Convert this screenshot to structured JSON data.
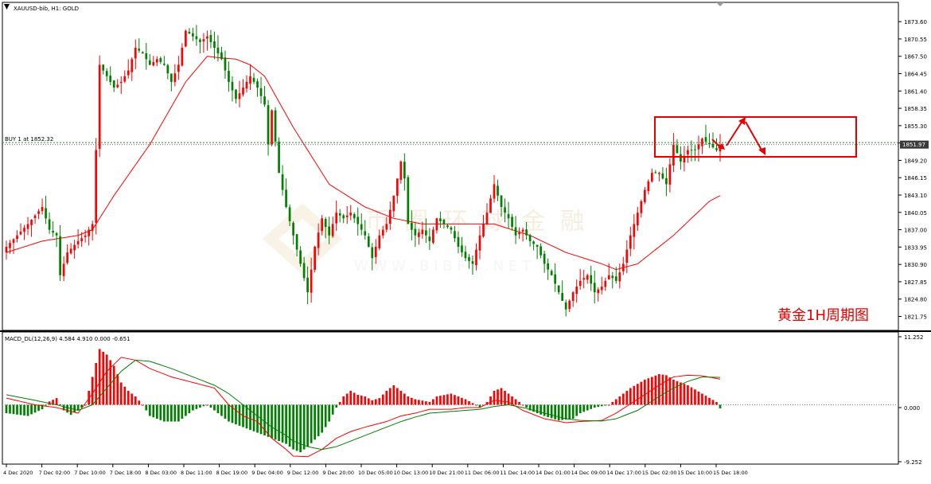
{
  "header": {
    "symbol_label": "XAUUSD-bib, H1:  GOLD"
  },
  "order_line": {
    "label": "BUY 1 at 1852.32",
    "price": 1852.32
  },
  "current_price_badge": "1851.97",
  "annotation": {
    "text": "黄金1H周期图"
  },
  "watermark": {
    "text_cn": "  币  圈  环  球  金  融",
    "text_url": "W W W . B I B F X . N E T"
  },
  "macd": {
    "label": "MACD_DL(12,26,9) 4.584 4.910 0.000 -0.651",
    "axis_labels": [
      "11.252",
      "0.000",
      "-9.252"
    ]
  },
  "colors": {
    "bull": "#ff0000",
    "bear": "#008000",
    "ma": "#ff0000",
    "signal": "#008000",
    "grid_dash": "#2a8f2a",
    "annotation": "#ff0000"
  },
  "chart_data": {
    "type": "candlestick",
    "price_axis": {
      "ylim": [
        1820.0,
        1876.0
      ],
      "ticks": [
        "1873.60",
        "1870.55",
        "1867.50",
        "1864.45",
        "1861.40",
        "1858.35",
        "1855.30",
        "1852.25",
        "1849.20",
        "1846.15",
        "1843.10",
        "1840.05",
        "1837.00",
        "1833.95",
        "1830.90",
        "1827.85",
        "1824.80",
        "1821.75"
      ]
    },
    "macd_axis": {
      "ylim": [
        -10.2,
        12.2
      ]
    },
    "x_labels": [
      "4 Dec 2020",
      "7 Dec 02:00",
      "7 Dec 10:00",
      "7 Dec 18:00",
      "8 Dec 03:00",
      "8 Dec 11:00",
      "8 Dec 19:00",
      "9 Dec 04:00",
      "9 Dec 12:00",
      "9 Dec 20:00",
      "10 Dec 05:00",
      "10 Dec 13:00",
      "10 Dec 21:00",
      "11 Dec 06:00",
      "11 Dec 14:00",
      "14 Dec 01:00",
      "14 Dec 09:00",
      "14 Dec 17:00",
      "15 Dec 02:00",
      "15 Dec 10:00",
      "15 Dec 18:00"
    ],
    "price_anchors": [
      [
        0,
        1834
      ],
      [
        6,
        1838
      ],
      [
        10,
        1841
      ],
      [
        12,
        1837
      ],
      [
        14,
        1836
      ],
      [
        15,
        1829
      ],
      [
        17,
        1833
      ],
      [
        20,
        1835
      ],
      [
        22,
        1836
      ],
      [
        24,
        1838
      ],
      [
        25,
        1851
      ],
      [
        26,
        1866
      ],
      [
        28,
        1864
      ],
      [
        30,
        1862
      ],
      [
        32,
        1863
      ],
      [
        34,
        1865
      ],
      [
        36,
        1869
      ],
      [
        38,
        1868
      ],
      [
        40,
        1866
      ],
      [
        42,
        1867
      ],
      [
        44,
        1866
      ],
      [
        46,
        1863
      ],
      [
        48,
        1866
      ],
      [
        50,
        1872
      ],
      [
        52,
        1871
      ],
      [
        54,
        1870
      ],
      [
        56,
        1871
      ],
      [
        58,
        1869
      ],
      [
        60,
        1867
      ],
      [
        62,
        1863
      ],
      [
        64,
        1860
      ],
      [
        66,
        1862
      ],
      [
        68,
        1864
      ],
      [
        70,
        1862
      ],
      [
        72,
        1859
      ],
      [
        73,
        1852
      ],
      [
        74,
        1858
      ],
      [
        76,
        1847
      ],
      [
        78,
        1841
      ],
      [
        80,
        1836
      ],
      [
        82,
        1831
      ],
      [
        84,
        1826
      ],
      [
        86,
        1834
      ],
      [
        88,
        1839
      ],
      [
        90,
        1836
      ],
      [
        92,
        1840
      ],
      [
        94,
        1839
      ],
      [
        96,
        1840
      ],
      [
        98,
        1838
      ],
      [
        100,
        1836
      ],
      [
        102,
        1832
      ],
      [
        104,
        1836
      ],
      [
        106,
        1838
      ],
      [
        108,
        1843
      ],
      [
        110,
        1849
      ],
      [
        111,
        1846
      ],
      [
        112,
        1838
      ],
      [
        114,
        1836
      ],
      [
        116,
        1837
      ],
      [
        118,
        1835
      ],
      [
        120,
        1839
      ],
      [
        122,
        1838
      ],
      [
        124,
        1837
      ],
      [
        126,
        1834
      ],
      [
        128,
        1832
      ],
      [
        130,
        1831
      ],
      [
        132,
        1836
      ],
      [
        134,
        1840
      ],
      [
        136,
        1845
      ],
      [
        138,
        1841
      ],
      [
        140,
        1839
      ],
      [
        142,
        1836
      ],
      [
        144,
        1837
      ],
      [
        146,
        1835
      ],
      [
        148,
        1834
      ],
      [
        150,
        1831
      ],
      [
        152,
        1829
      ],
      [
        154,
        1826
      ],
      [
        156,
        1823
      ],
      [
        158,
        1826
      ],
      [
        160,
        1828
      ],
      [
        162,
        1829
      ],
      [
        164,
        1826
      ],
      [
        166,
        1827
      ],
      [
        168,
        1829
      ],
      [
        170,
        1828
      ],
      [
        172,
        1831
      ],
      [
        174,
        1836
      ],
      [
        176,
        1840
      ],
      [
        178,
        1844
      ],
      [
        180,
        1847
      ],
      [
        182,
        1847
      ],
      [
        184,
        1845
      ],
      [
        186,
        1852
      ],
      [
        188,
        1849
      ],
      [
        190,
        1851
      ],
      [
        192,
        1851
      ],
      [
        194,
        1853
      ],
      [
        196,
        1852
      ],
      [
        198,
        1851
      ],
      [
        199,
        1851.97
      ]
    ],
    "moving_average_anchors": [
      [
        0,
        1833
      ],
      [
        10,
        1835
      ],
      [
        20,
        1836
      ],
      [
        24,
        1837
      ],
      [
        30,
        1843
      ],
      [
        40,
        1852
      ],
      [
        50,
        1863
      ],
      [
        56,
        1867.5
      ],
      [
        60,
        1867.2
      ],
      [
        64,
        1867
      ],
      [
        68,
        1866
      ],
      [
        72,
        1864
      ],
      [
        80,
        1855
      ],
      [
        90,
        1845
      ],
      [
        100,
        1841
      ],
      [
        108,
        1839
      ],
      [
        116,
        1838
      ],
      [
        126,
        1838
      ],
      [
        136,
        1838
      ],
      [
        146,
        1836
      ],
      [
        156,
        1833
      ],
      [
        166,
        1831
      ],
      [
        170,
        1830
      ],
      [
        176,
        1831
      ],
      [
        186,
        1836
      ],
      [
        196,
        1842
      ],
      [
        199,
        1843
      ]
    ],
    "macd_histogram_anchors": [
      [
        0,
        -1.5
      ],
      [
        6,
        -2
      ],
      [
        10,
        -0.8
      ],
      [
        12,
        0.6
      ],
      [
        14,
        1.2
      ],
      [
        16,
        -1
      ],
      [
        18,
        -1.8
      ],
      [
        20,
        -1
      ],
      [
        22,
        0
      ],
      [
        24,
        5
      ],
      [
        26,
        10
      ],
      [
        28,
        9
      ],
      [
        30,
        7
      ],
      [
        32,
        4
      ],
      [
        34,
        2.5
      ],
      [
        36,
        1.5
      ],
      [
        38,
        0
      ],
      [
        40,
        -2
      ],
      [
        44,
        -3
      ],
      [
        48,
        -3
      ],
      [
        52,
        -1
      ],
      [
        56,
        0
      ],
      [
        58,
        -1
      ],
      [
        62,
        -3
      ],
      [
        66,
        -4
      ],
      [
        70,
        -5
      ],
      [
        74,
        -6
      ],
      [
        78,
        -7
      ],
      [
        80,
        -8
      ],
      [
        82,
        -8.5
      ],
      [
        84,
        -7.5
      ],
      [
        88,
        -5
      ],
      [
        90,
        -3
      ],
      [
        92,
        -0.5
      ],
      [
        94,
        1.5
      ],
      [
        96,
        2.5
      ],
      [
        98,
        1.8
      ],
      [
        100,
        1.5
      ],
      [
        102,
        0.8
      ],
      [
        104,
        1.2
      ],
      [
        106,
        2.5
      ],
      [
        108,
        3.5
      ],
      [
        110,
        2.5
      ],
      [
        112,
        1.5
      ],
      [
        114,
        1
      ],
      [
        118,
        0.5
      ],
      [
        120,
        1.5
      ],
      [
        124,
        2
      ],
      [
        128,
        1
      ],
      [
        130,
        0.3
      ],
      [
        132,
        -0.5
      ],
      [
        134,
        0.5
      ],
      [
        136,
        2.5
      ],
      [
        138,
        3
      ],
      [
        140,
        2
      ],
      [
        142,
        1
      ],
      [
        144,
        0
      ],
      [
        146,
        -1
      ],
      [
        150,
        -2
      ],
      [
        154,
        -2.8
      ],
      [
        158,
        -2.5
      ],
      [
        160,
        -1.5
      ],
      [
        164,
        -0.5
      ],
      [
        168,
        0
      ],
      [
        170,
        1
      ],
      [
        172,
        2
      ],
      [
        174,
        3
      ],
      [
        178,
        4.5
      ],
      [
        182,
        5.5
      ],
      [
        184,
        5.3
      ],
      [
        186,
        4.5
      ],
      [
        190,
        3.5
      ],
      [
        194,
        2
      ],
      [
        198,
        0.5
      ],
      [
        199,
        -0.651
      ]
    ],
    "macd_line_anchors": [
      [
        0,
        1.2
      ],
      [
        8,
        0
      ],
      [
        14,
        -0.5
      ],
      [
        20,
        -1.5
      ],
      [
        24,
        2
      ],
      [
        28,
        6
      ],
      [
        32,
        8.5
      ],
      [
        36,
        8
      ],
      [
        40,
        6.5
      ],
      [
        46,
        5
      ],
      [
        52,
        4
      ],
      [
        58,
        3
      ],
      [
        62,
        0
      ],
      [
        66,
        -2
      ],
      [
        70,
        -3
      ],
      [
        74,
        -6
      ],
      [
        78,
        -8
      ],
      [
        80,
        -9.2
      ],
      [
        84,
        -9.3
      ],
      [
        88,
        -8
      ],
      [
        92,
        -6
      ],
      [
        96,
        -4.8
      ],
      [
        100,
        -4
      ],
      [
        106,
        -3
      ],
      [
        110,
        -2
      ],
      [
        114,
        -1.5
      ],
      [
        118,
        -0.8
      ],
      [
        124,
        -0.8
      ],
      [
        128,
        -0.5
      ],
      [
        132,
        -0.5
      ],
      [
        136,
        0.8
      ],
      [
        140,
        0.5
      ],
      [
        144,
        -1
      ],
      [
        150,
        -2.5
      ],
      [
        156,
        -3.2
      ],
      [
        160,
        -3
      ],
      [
        166,
        -2.8
      ],
      [
        170,
        -1.5
      ],
      [
        176,
        1
      ],
      [
        182,
        3.5
      ],
      [
        186,
        5
      ],
      [
        190,
        5.3
      ],
      [
        194,
        5.2
      ],
      [
        199,
        4.584
      ]
    ],
    "signal_line_anchors": [
      [
        0,
        1.8
      ],
      [
        8,
        0.8
      ],
      [
        14,
        0
      ],
      [
        20,
        -1
      ],
      [
        24,
        0
      ],
      [
        28,
        3
      ],
      [
        32,
        6
      ],
      [
        36,
        8
      ],
      [
        40,
        7.8
      ],
      [
        46,
        6.5
      ],
      [
        52,
        5
      ],
      [
        58,
        3.5
      ],
      [
        62,
        2
      ],
      [
        66,
        0
      ],
      [
        70,
        -2
      ],
      [
        74,
        -4
      ],
      [
        78,
        -5.5
      ],
      [
        80,
        -6.5
      ],
      [
        84,
        -7.5
      ],
      [
        88,
        -8
      ],
      [
        92,
        -7.5
      ],
      [
        96,
        -6.5
      ],
      [
        100,
        -5.5
      ],
      [
        106,
        -4
      ],
      [
        110,
        -3
      ],
      [
        114,
        -2.2
      ],
      [
        118,
        -1.5
      ],
      [
        124,
        -1.2
      ],
      [
        128,
        -1
      ],
      [
        132,
        -0.8
      ],
      [
        136,
        -0.3
      ],
      [
        140,
        0
      ],
      [
        144,
        -0.5
      ],
      [
        150,
        -1.5
      ],
      [
        156,
        -2.5
      ],
      [
        160,
        -2.8
      ],
      [
        166,
        -2.9
      ],
      [
        170,
        -2.5
      ],
      [
        176,
        -1
      ],
      [
        182,
        1.5
      ],
      [
        186,
        3
      ],
      [
        190,
        4.2
      ],
      [
        194,
        5
      ],
      [
        199,
        4.91
      ]
    ]
  }
}
